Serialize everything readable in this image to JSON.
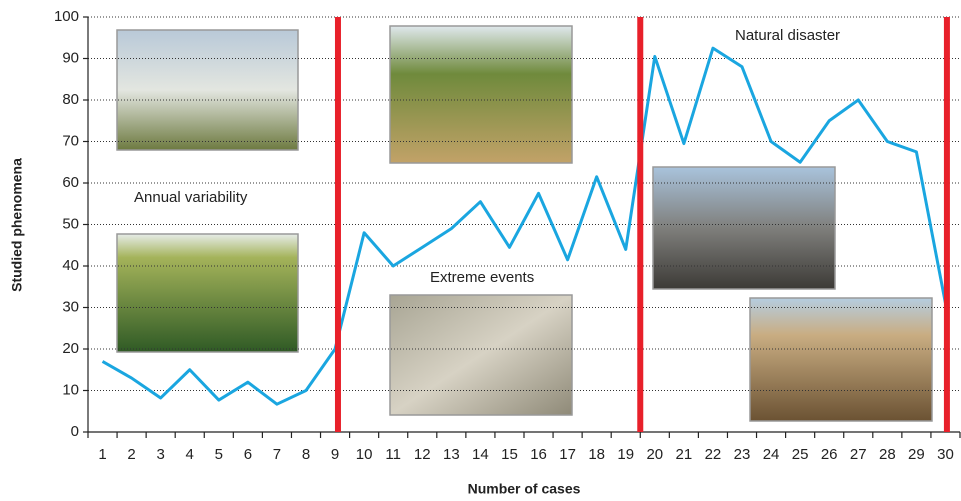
{
  "chart_data": {
    "type": "line",
    "xlabel": "Number of cases",
    "ylabel": "Studied phenomena",
    "categories": [
      "1",
      "2",
      "3",
      "4",
      "5",
      "6",
      "7",
      "8",
      "9",
      "10",
      "11",
      "12",
      "13",
      "14",
      "15",
      "16",
      "17",
      "18",
      "19",
      "20",
      "21",
      "22",
      "23",
      "24",
      "25",
      "26",
      "27",
      "28",
      "29",
      "30"
    ],
    "series": [
      {
        "color": "#1aa6e0",
        "values": [
          17,
          13,
          8.2,
          15,
          7.7,
          12,
          6.7,
          10,
          20,
          48,
          40,
          44.5,
          49,
          55.5,
          44.5,
          57.5,
          41.5,
          61.5,
          44,
          90.5,
          69.5,
          92.5,
          88,
          70,
          65,
          75,
          80,
          70,
          67.5,
          31
        ]
      }
    ],
    "separators": [
      9.1,
      19.5,
      30.05
    ],
    "separator_color": "#e8202a",
    "annotations": [
      "Annual variability",
      "Extreme events",
      "Natural disaster"
    ],
    "ylim": [
      0,
      100
    ],
    "yticks": [
      0,
      10,
      20,
      30,
      40,
      50,
      60,
      70,
      80,
      90,
      100
    ],
    "grid": true
  }
}
